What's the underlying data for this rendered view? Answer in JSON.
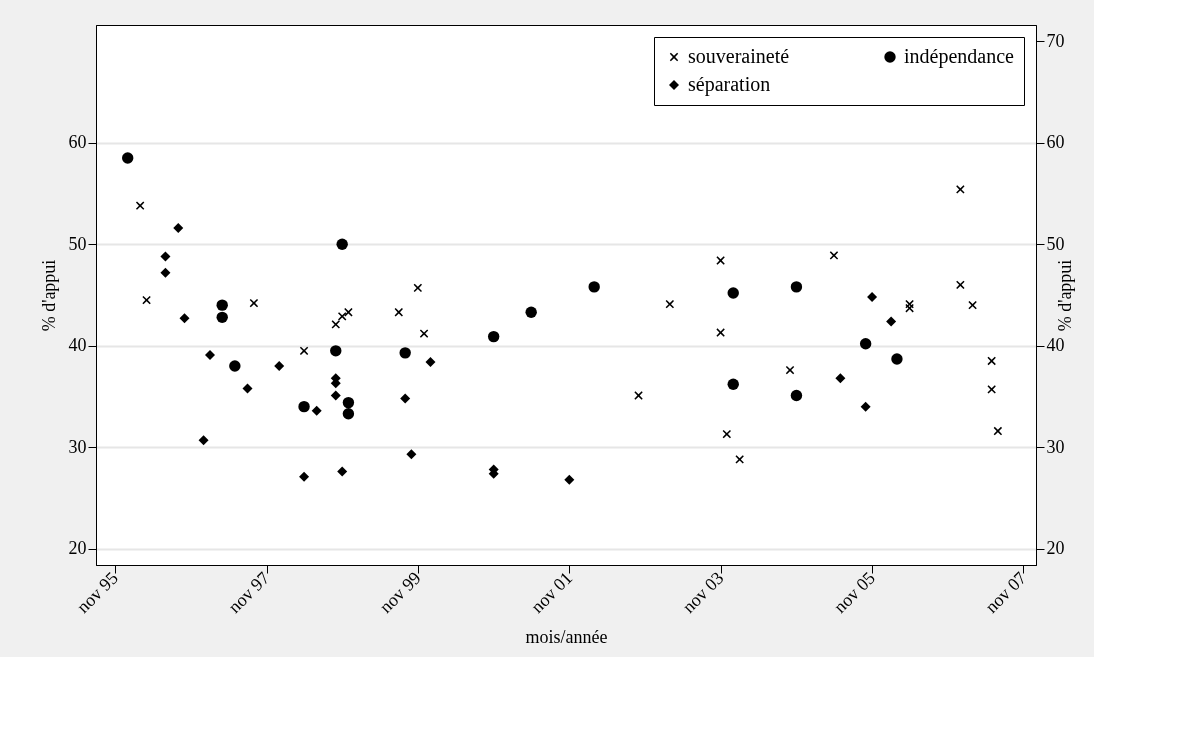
{
  "chart_data": {
    "type": "scatter",
    "xlabel": "mois/année",
    "ylabel": "% d'appui",
    "y2label": "% d'appui",
    "xlim": [
      "1995-08",
      "2008-01"
    ],
    "xticks": [
      {
        "value": "1995-11",
        "label": "nov 95"
      },
      {
        "value": "1997-11",
        "label": "nov 97"
      },
      {
        "value": "1999-11",
        "label": "nov 99"
      },
      {
        "value": "2001-11",
        "label": "nov 01"
      },
      {
        "value": "2003-11",
        "label": "nov 03"
      },
      {
        "value": "2005-11",
        "label": "nov 05"
      },
      {
        "value": "2007-11",
        "label": "nov 07"
      }
    ],
    "ylim": [
      18.4,
      71.6
    ],
    "yticks": [
      20,
      30,
      40,
      50,
      60
    ],
    "y2lim": [
      18.4,
      71.6
    ],
    "y2ticks": [
      20,
      30,
      40,
      50,
      60,
      70
    ],
    "grid": "y",
    "legend": "top right",
    "series": [
      {
        "name": "souveraineté",
        "color": "#000000",
        "marker": "cross",
        "x": [
          "1996-03",
          "1996-04",
          "1997-09",
          "1998-05",
          "1998-10",
          "1998-11",
          "1998-12",
          "1999-08",
          "1999-11",
          "1999-12",
          "2002-10",
          "2003-03",
          "2003-11",
          "2003-11",
          "2003-12",
          "2004-02",
          "2004-10",
          "2005-05",
          "2006-05",
          "2006-05",
          "2007-01",
          "2007-01",
          "2007-03",
          "2007-06",
          "2007-06",
          "2007-07"
        ],
        "values": [
          53.8,
          44.5,
          44.2,
          39.5,
          42.1,
          42.9,
          43.3,
          43.3,
          45.7,
          41.2,
          35.1,
          44.1,
          48.4,
          41.3,
          31.3,
          28.8,
          37.6,
          48.9,
          44.1,
          43.7,
          55.4,
          46.0,
          44.0,
          38.5,
          35.7,
          31.6
        ]
      },
      {
        "name": "indépendance",
        "color": "#000000",
        "marker": "circle",
        "x": [
          "1996-01",
          "1997-04",
          "1997-04",
          "1997-06",
          "1998-05",
          "1998-10",
          "1998-11",
          "1998-12",
          "1998-12",
          "1999-09",
          "2000-11",
          "2001-05",
          "2002-03",
          "2004-01",
          "2004-01",
          "2004-11",
          "2004-11",
          "2005-10",
          "2006-03"
        ],
        "values": [
          58.5,
          44.0,
          42.8,
          38.0,
          34.0,
          39.5,
          50.0,
          34.4,
          33.3,
          39.3,
          40.9,
          43.3,
          45.8,
          45.2,
          36.2,
          45.8,
          35.1,
          40.2,
          38.7
        ]
      },
      {
        "name": "séparation",
        "color": "#000000",
        "marker": "diamond",
        "x": [
          "1996-07",
          "1996-07",
          "1996-09",
          "1996-10",
          "1997-01",
          "1997-02",
          "1997-08",
          "1998-01",
          "1998-05",
          "1998-07",
          "1998-10",
          "1998-10",
          "1998-10",
          "1998-11",
          "1999-09",
          "1999-10",
          "2000-01",
          "2000-11",
          "2000-11",
          "2001-11",
          "2005-06",
          "2005-10",
          "2005-11",
          "2006-02"
        ],
        "values": [
          48.8,
          47.2,
          51.6,
          42.7,
          30.7,
          39.1,
          35.8,
          38.0,
          27.1,
          33.6,
          36.8,
          36.3,
          35.1,
          27.6,
          34.8,
          29.3,
          38.4,
          27.8,
          27.4,
          26.8,
          36.8,
          34.0,
          44.8,
          42.4
        ]
      }
    ]
  }
}
